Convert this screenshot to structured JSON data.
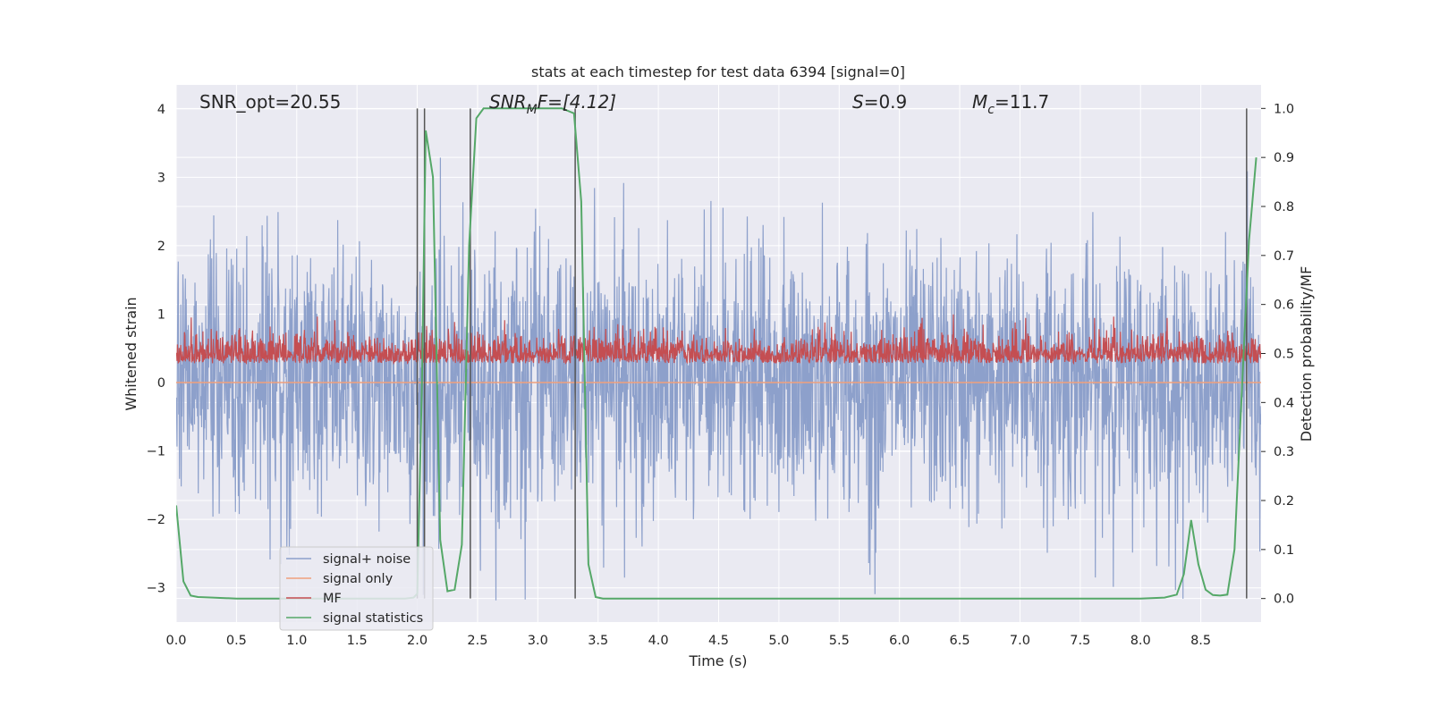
{
  "chart_data": {
    "type": "line",
    "title": "stats at each timestep for test data 6394 [signal=0]",
    "xlabel": "Time (s)",
    "ylabel": "Whitened strain",
    "ylabel_right": "Detection probability/MF",
    "xlim": [
      0.0,
      9.0
    ],
    "ylim": [
      -3.5,
      4.35
    ],
    "ylim_right": [
      -0.048,
      1.048
    ],
    "x_ticks": [
      "0.0",
      "0.5",
      "1.0",
      "1.5",
      "2.0",
      "2.5",
      "3.0",
      "3.5",
      "4.0",
      "4.5",
      "5.0",
      "5.5",
      "6.0",
      "6.5",
      "7.0",
      "7.5",
      "8.0",
      "8.5"
    ],
    "y_ticks": [
      "4",
      "3",
      "2",
      "1",
      "0",
      "−1",
      "−2",
      "−3"
    ],
    "y_right_ticks": [
      "1.0",
      "0.9",
      "0.8",
      "0.7",
      "0.6",
      "0.5",
      "0.4",
      "0.3",
      "0.2",
      "0.1",
      "0.0"
    ],
    "annotations": {
      "snr_opt": "SNR_opt=20.55",
      "snr_mf_base": "SNR",
      "snr_mf_sub": "M",
      "snr_mf_tail": "F=[4.12]",
      "s_label": "S",
      "s_value": "=0.9",
      "mc_base": "M",
      "mc_sub": "c",
      "mc_value": "=11.7"
    },
    "legend": {
      "position": "lower-left",
      "entries": [
        "signal+ noise",
        "signal only",
        "MF",
        "signal statistics"
      ]
    },
    "colors": {
      "noise": "#8da0cb",
      "signal_only": "#f0a07c",
      "mf": "#c44e52",
      "stats": "#55a868",
      "vlines": "#555555",
      "background": "#eaeaf2",
      "grid": "#ffffff"
    },
    "vertical_lines_x": [
      2.0,
      2.06,
      2.44,
      3.31,
      8.88
    ],
    "series": [
      {
        "name": "signal+ noise",
        "note": "whitened strain noise, approx zero-mean, peaks up to ~3.3 and down to ~-3.2",
        "amplitude_std": 1.0,
        "peak_max": 3.3,
        "peak_min": -3.2
      },
      {
        "name": "signal only",
        "note": "flat near zero",
        "value": 0.0
      },
      {
        "name": "MF",
        "axis": "right",
        "note": "matched-filter output fluctuating between ~0.48 and ~0.58 on right axis",
        "baseline": 0.48,
        "peak_max": 0.58
      },
      {
        "name": "signal statistics",
        "axis": "right",
        "x": [
          0.0,
          0.06,
          0.12,
          0.18,
          0.3,
          0.5,
          0.8,
          1.2,
          1.6,
          1.9,
          1.97,
          2.0,
          2.04,
          2.07,
          2.13,
          2.19,
          2.25,
          2.31,
          2.37,
          2.43,
          2.49,
          2.55,
          2.6,
          2.8,
          3.0,
          3.2,
          3.3,
          3.36,
          3.42,
          3.48,
          3.54,
          3.6,
          4.0,
          5.0,
          6.0,
          7.0,
          8.0,
          8.2,
          8.3,
          8.36,
          8.42,
          8.48,
          8.54,
          8.6,
          8.66,
          8.72,
          8.78,
          8.84,
          8.9,
          8.96
        ],
        "values": [
          0.19,
          0.035,
          0.006,
          0.003,
          0.002,
          0.0,
          0.0,
          0.0,
          0.0,
          0.0,
          0.002,
          0.01,
          0.45,
          0.955,
          0.86,
          0.12,
          0.015,
          0.018,
          0.11,
          0.72,
          0.98,
          1.0,
          1.0,
          1.0,
          1.0,
          1.0,
          0.99,
          0.81,
          0.07,
          0.003,
          0.0,
          0.0,
          0.0,
          0.0,
          0.0,
          0.0,
          0.0,
          0.002,
          0.008,
          0.05,
          0.16,
          0.07,
          0.018,
          0.007,
          0.006,
          0.008,
          0.1,
          0.42,
          0.73,
          0.9
        ]
      }
    ]
  }
}
